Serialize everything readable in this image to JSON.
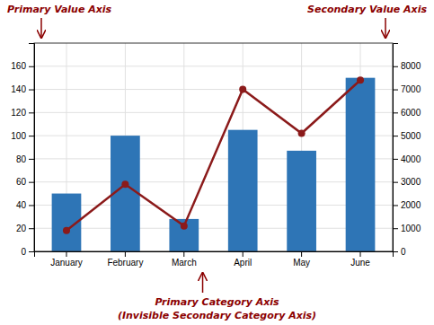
{
  "chart_data": {
    "type": "bar",
    "categories": [
      "January",
      "February",
      "March",
      "April",
      "May",
      "June"
    ],
    "series": [
      {
        "type": "bar",
        "color": "#2E75B6",
        "values": [
          50,
          100,
          28,
          105,
          87,
          150
        ]
      },
      {
        "type": "line",
        "color": "#8B1A1A",
        "marker": "circle",
        "axis": "y2",
        "values": [
          900,
          2900,
          1100,
          7000,
          5100,
          7400
        ]
      }
    ],
    "ylim": [
      0,
      180
    ],
    "yticks": [
      0,
      20,
      40,
      60,
      80,
      100,
      120,
      140,
      160
    ],
    "y2lim": [
      0,
      9000
    ],
    "y2ticks": [
      0,
      1000,
      2000,
      3000,
      4000,
      5000,
      6000,
      7000,
      8000
    ],
    "grid": true,
    "annotations": [
      {
        "text": "Primary Value Axis",
        "color": "#8B0000"
      },
      {
        "text": "Secondary Value Axis",
        "color": "#8B0000"
      },
      {
        "text": "Primary Category Axis",
        "color": "#8B0000"
      },
      {
        "text": "(Invisible Secondary Category Axis)",
        "color": "#8B0000"
      }
    ]
  }
}
